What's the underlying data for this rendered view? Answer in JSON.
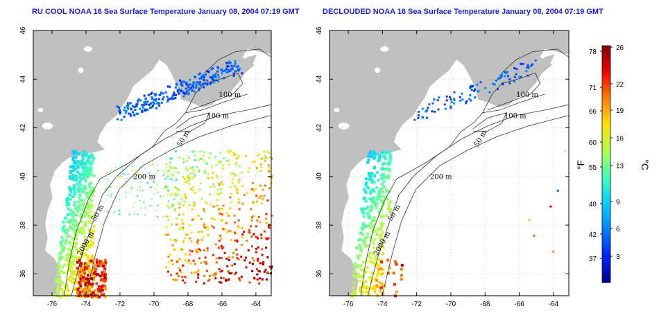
{
  "chart_data": [
    {
      "type": "map",
      "title": "RU COOL NOAA 16 Sea Surface Temperature January 08, 2004 07:19 GMT",
      "x_ticks": [
        "-76",
        "-74",
        "-72",
        "-70",
        "-68",
        "-66",
        "-64"
      ],
      "y_ticks": [
        "36",
        "38",
        "40",
        "42",
        "44",
        "46"
      ],
      "xlim": [
        -77.1,
        -63.1
      ],
      "ylim": [
        35.1,
        46
      ],
      "contour_labels": [
        "100 m",
        "100 m",
        "50 m",
        "200 m",
        "50 m",
        "2000 m"
      ],
      "grid": "dotted"
    },
    {
      "type": "map",
      "title": "DECLOUDED NOAA 16 Sea Surface Temperature January 08, 2004 07:19 GMT",
      "x_ticks": [
        "-76",
        "-74",
        "-72",
        "-70",
        "-68",
        "-66",
        "-64"
      ],
      "y_ticks": [
        "36",
        "38",
        "40",
        "42",
        "44",
        "46"
      ],
      "xlim": [
        -77.1,
        -63.1
      ],
      "ylim": [
        35.1,
        46
      ],
      "contour_labels": [
        "100 m",
        "100 m",
        "50 m",
        "200 m",
        "50 m",
        "2000 m"
      ],
      "grid": "dotted"
    }
  ],
  "colorbar": {
    "fahrenheit_ticks": [
      "78",
      "71",
      "66",
      "60",
      "55",
      "48",
      "42",
      "37"
    ],
    "celsius_ticks": [
      "26",
      "22",
      "19",
      "16",
      "13",
      "9",
      "6",
      "3"
    ],
    "fahrenheit_label": "°F",
    "celsius_label": "°C",
    "colors": [
      "#00008f",
      "#0020ff",
      "#0080ff",
      "#00d0ff",
      "#40ffc0",
      "#b0ff50",
      "#ffe000",
      "#ff8000",
      "#f00000",
      "#800000"
    ]
  }
}
